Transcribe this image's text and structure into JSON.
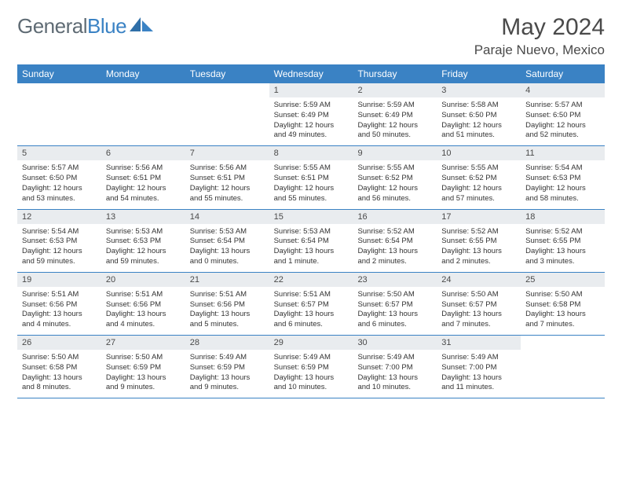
{
  "brand": {
    "general": "General",
    "blue": "Blue"
  },
  "header": {
    "title": "May 2024",
    "location": "Paraje Nuevo, Mexico"
  },
  "colors": {
    "header_bg": "#3a82c4",
    "daynum_bg": "#e9ecef",
    "page_bg": "#ffffff",
    "text": "#4a4a4a",
    "border": "#3a82c4"
  },
  "fonts": {
    "title_size": 30,
    "location_size": 17,
    "dayheader_size": 12,
    "daynum_size": 11,
    "body_size": 9.5
  },
  "day_names": [
    "Sunday",
    "Monday",
    "Tuesday",
    "Wednesday",
    "Thursday",
    "Friday",
    "Saturday"
  ],
  "weeks": [
    [
      {
        "n": "",
        "sr": "",
        "ss": "",
        "dl": ""
      },
      {
        "n": "",
        "sr": "",
        "ss": "",
        "dl": ""
      },
      {
        "n": "",
        "sr": "",
        "ss": "",
        "dl": ""
      },
      {
        "n": "1",
        "sr": "Sunrise: 5:59 AM",
        "ss": "Sunset: 6:49 PM",
        "dl": "Daylight: 12 hours and 49 minutes."
      },
      {
        "n": "2",
        "sr": "Sunrise: 5:59 AM",
        "ss": "Sunset: 6:49 PM",
        "dl": "Daylight: 12 hours and 50 minutes."
      },
      {
        "n": "3",
        "sr": "Sunrise: 5:58 AM",
        "ss": "Sunset: 6:50 PM",
        "dl": "Daylight: 12 hours and 51 minutes."
      },
      {
        "n": "4",
        "sr": "Sunrise: 5:57 AM",
        "ss": "Sunset: 6:50 PM",
        "dl": "Daylight: 12 hours and 52 minutes."
      }
    ],
    [
      {
        "n": "5",
        "sr": "Sunrise: 5:57 AM",
        "ss": "Sunset: 6:50 PM",
        "dl": "Daylight: 12 hours and 53 minutes."
      },
      {
        "n": "6",
        "sr": "Sunrise: 5:56 AM",
        "ss": "Sunset: 6:51 PM",
        "dl": "Daylight: 12 hours and 54 minutes."
      },
      {
        "n": "7",
        "sr": "Sunrise: 5:56 AM",
        "ss": "Sunset: 6:51 PM",
        "dl": "Daylight: 12 hours and 55 minutes."
      },
      {
        "n": "8",
        "sr": "Sunrise: 5:55 AM",
        "ss": "Sunset: 6:51 PM",
        "dl": "Daylight: 12 hours and 55 minutes."
      },
      {
        "n": "9",
        "sr": "Sunrise: 5:55 AM",
        "ss": "Sunset: 6:52 PM",
        "dl": "Daylight: 12 hours and 56 minutes."
      },
      {
        "n": "10",
        "sr": "Sunrise: 5:55 AM",
        "ss": "Sunset: 6:52 PM",
        "dl": "Daylight: 12 hours and 57 minutes."
      },
      {
        "n": "11",
        "sr": "Sunrise: 5:54 AM",
        "ss": "Sunset: 6:53 PM",
        "dl": "Daylight: 12 hours and 58 minutes."
      }
    ],
    [
      {
        "n": "12",
        "sr": "Sunrise: 5:54 AM",
        "ss": "Sunset: 6:53 PM",
        "dl": "Daylight: 12 hours and 59 minutes."
      },
      {
        "n": "13",
        "sr": "Sunrise: 5:53 AM",
        "ss": "Sunset: 6:53 PM",
        "dl": "Daylight: 12 hours and 59 minutes."
      },
      {
        "n": "14",
        "sr": "Sunrise: 5:53 AM",
        "ss": "Sunset: 6:54 PM",
        "dl": "Daylight: 13 hours and 0 minutes."
      },
      {
        "n": "15",
        "sr": "Sunrise: 5:53 AM",
        "ss": "Sunset: 6:54 PM",
        "dl": "Daylight: 13 hours and 1 minute."
      },
      {
        "n": "16",
        "sr": "Sunrise: 5:52 AM",
        "ss": "Sunset: 6:54 PM",
        "dl": "Daylight: 13 hours and 2 minutes."
      },
      {
        "n": "17",
        "sr": "Sunrise: 5:52 AM",
        "ss": "Sunset: 6:55 PM",
        "dl": "Daylight: 13 hours and 2 minutes."
      },
      {
        "n": "18",
        "sr": "Sunrise: 5:52 AM",
        "ss": "Sunset: 6:55 PM",
        "dl": "Daylight: 13 hours and 3 minutes."
      }
    ],
    [
      {
        "n": "19",
        "sr": "Sunrise: 5:51 AM",
        "ss": "Sunset: 6:56 PM",
        "dl": "Daylight: 13 hours and 4 minutes."
      },
      {
        "n": "20",
        "sr": "Sunrise: 5:51 AM",
        "ss": "Sunset: 6:56 PM",
        "dl": "Daylight: 13 hours and 4 minutes."
      },
      {
        "n": "21",
        "sr": "Sunrise: 5:51 AM",
        "ss": "Sunset: 6:56 PM",
        "dl": "Daylight: 13 hours and 5 minutes."
      },
      {
        "n": "22",
        "sr": "Sunrise: 5:51 AM",
        "ss": "Sunset: 6:57 PM",
        "dl": "Daylight: 13 hours and 6 minutes."
      },
      {
        "n": "23",
        "sr": "Sunrise: 5:50 AM",
        "ss": "Sunset: 6:57 PM",
        "dl": "Daylight: 13 hours and 6 minutes."
      },
      {
        "n": "24",
        "sr": "Sunrise: 5:50 AM",
        "ss": "Sunset: 6:57 PM",
        "dl": "Daylight: 13 hours and 7 minutes."
      },
      {
        "n": "25",
        "sr": "Sunrise: 5:50 AM",
        "ss": "Sunset: 6:58 PM",
        "dl": "Daylight: 13 hours and 7 minutes."
      }
    ],
    [
      {
        "n": "26",
        "sr": "Sunrise: 5:50 AM",
        "ss": "Sunset: 6:58 PM",
        "dl": "Daylight: 13 hours and 8 minutes."
      },
      {
        "n": "27",
        "sr": "Sunrise: 5:50 AM",
        "ss": "Sunset: 6:59 PM",
        "dl": "Daylight: 13 hours and 9 minutes."
      },
      {
        "n": "28",
        "sr": "Sunrise: 5:49 AM",
        "ss": "Sunset: 6:59 PM",
        "dl": "Daylight: 13 hours and 9 minutes."
      },
      {
        "n": "29",
        "sr": "Sunrise: 5:49 AM",
        "ss": "Sunset: 6:59 PM",
        "dl": "Daylight: 13 hours and 10 minutes."
      },
      {
        "n": "30",
        "sr": "Sunrise: 5:49 AM",
        "ss": "Sunset: 7:00 PM",
        "dl": "Daylight: 13 hours and 10 minutes."
      },
      {
        "n": "31",
        "sr": "Sunrise: 5:49 AM",
        "ss": "Sunset: 7:00 PM",
        "dl": "Daylight: 13 hours and 11 minutes."
      },
      {
        "n": "",
        "sr": "",
        "ss": "",
        "dl": ""
      }
    ]
  ]
}
